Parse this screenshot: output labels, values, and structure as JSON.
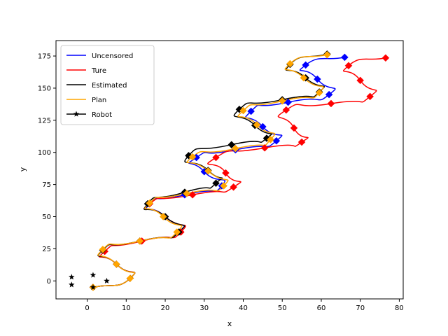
{
  "chart_data": {
    "type": "line",
    "xlabel": "x",
    "ylabel": "y",
    "xlim": [
      -8,
      81
    ],
    "ylim": [
      -14,
      187
    ],
    "xticks": [
      0,
      10,
      20,
      30,
      40,
      50,
      60,
      70,
      80
    ],
    "yticks": [
      0,
      25,
      50,
      75,
      100,
      125,
      150,
      175
    ],
    "grid": false,
    "legend_position": "top-left",
    "series": [
      {
        "name": "Uncensored",
        "color": "#0000ff",
        "marker": "diamond",
        "points": [
          [
            1.5,
            -5
          ],
          [
            11,
            2
          ],
          [
            7.5,
            13
          ],
          [
            4,
            24
          ],
          [
            13.5,
            31
          ],
          [
            23.5,
            38
          ],
          [
            20,
            50
          ],
          [
            16,
            60
          ],
          [
            25,
            67
          ],
          [
            34.5,
            74
          ],
          [
            30,
            85
          ],
          [
            28,
            96
          ],
          [
            38,
            102
          ],
          [
            48.5,
            109
          ],
          [
            45,
            120
          ],
          [
            42,
            132
          ],
          [
            51.5,
            139
          ],
          [
            62,
            145
          ],
          [
            59,
            157
          ],
          [
            56,
            168
          ],
          [
            66,
            174
          ]
        ]
      },
      {
        "name": "Ture",
        "color": "#ff0000",
        "marker": "diamond",
        "points": [
          [
            1.5,
            -5
          ],
          [
            11,
            2
          ],
          [
            7.5,
            13
          ],
          [
            4.5,
            23
          ],
          [
            14,
            31
          ],
          [
            24,
            38
          ],
          [
            20,
            50
          ],
          [
            16,
            60
          ],
          [
            27,
            67
          ],
          [
            37.5,
            73
          ],
          [
            35.5,
            84
          ],
          [
            33,
            96
          ],
          [
            45.5,
            103.5
          ],
          [
            55,
            108
          ],
          [
            53,
            119
          ],
          [
            51,
            133
          ],
          [
            62.5,
            138
          ],
          [
            72.5,
            143.5
          ],
          [
            70,
            156
          ],
          [
            67,
            167.5
          ],
          [
            76.5,
            173.5
          ]
        ]
      },
      {
        "name": "Estimated",
        "color": "#000000",
        "marker": "diamond",
        "points": [
          [
            1.5,
            -5
          ],
          [
            11,
            2
          ],
          [
            7.5,
            13
          ],
          [
            4,
            24
          ],
          [
            13.5,
            31
          ],
          [
            23.5,
            38
          ],
          [
            20,
            50
          ],
          [
            15.5,
            60
          ],
          [
            25,
            69
          ],
          [
            33,
            76
          ],
          [
            31,
            86
          ],
          [
            26,
            97.5
          ],
          [
            37,
            106
          ],
          [
            46,
            111
          ],
          [
            43,
            121
          ],
          [
            39,
            133.5
          ],
          [
            50,
            141
          ],
          [
            59.5,
            147
          ],
          [
            56,
            158
          ],
          [
            52,
            168.5
          ],
          [
            61.5,
            176.5
          ]
        ]
      },
      {
        "name": "Plan",
        "color": "#ffa500",
        "marker": "diamond",
        "points": [
          [
            1.5,
            -5
          ],
          [
            11,
            2
          ],
          [
            7.5,
            13
          ],
          [
            4,
            24.5
          ],
          [
            13.5,
            31
          ],
          [
            23,
            38
          ],
          [
            19.5,
            50
          ],
          [
            16,
            60.5
          ],
          [
            25.5,
            68
          ],
          [
            35,
            74
          ],
          [
            31,
            85.5
          ],
          [
            27,
            96.5
          ],
          [
            38,
            103
          ],
          [
            47,
            110
          ],
          [
            43.5,
            121.5
          ],
          [
            40,
            132.5
          ],
          [
            50,
            140
          ],
          [
            59.5,
            146.5
          ],
          [
            55.5,
            158
          ],
          [
            52,
            169
          ],
          [
            61.5,
            176
          ]
        ]
      }
    ],
    "robots": {
      "name": "Robot",
      "color": "#000000",
      "marker": "star",
      "points": [
        [
          -4,
          3
        ],
        [
          1.5,
          4.5
        ],
        [
          -4,
          -3
        ],
        [
          5,
          0
        ],
        [
          1.5,
          -5
        ]
      ]
    }
  },
  "legend": {
    "items": [
      {
        "label": "Uncensored",
        "color": "#0000ff",
        "marker": ""
      },
      {
        "label": "Ture",
        "color": "#ff0000",
        "marker": ""
      },
      {
        "label": "Estimated",
        "color": "#000000",
        "marker": ""
      },
      {
        "label": "Plan",
        "color": "#ffa500",
        "marker": ""
      },
      {
        "label": "Robot",
        "color": "#000000",
        "marker": "star"
      }
    ]
  }
}
